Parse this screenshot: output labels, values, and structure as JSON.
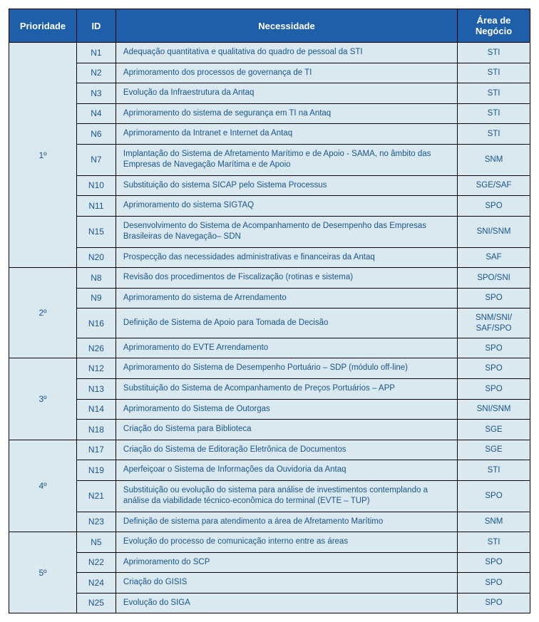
{
  "table": {
    "header_bg": "#1f5ea8",
    "header_fg": "#ffffff",
    "cell_bg": "#d9e9ef",
    "cell_fg": "#1a5490",
    "border_color": "#000000",
    "columns": {
      "priority": "Prioridade",
      "id": "ID",
      "need": "Necessidade",
      "area": "Área de Negócio"
    },
    "groups": [
      {
        "priority": "1º",
        "rows": [
          {
            "id": "N1",
            "need": "Adequação quantitativa e qualitativa do quadro de pessoal da STI",
            "area": "STI"
          },
          {
            "id": "N2",
            "need": "Aprimoramento dos processos de governança de TI",
            "area": "STI"
          },
          {
            "id": "N3",
            "need": "Evolução da Infraestrutura da Antaq",
            "area": "STI"
          },
          {
            "id": "N4",
            "need": "Aprimoramento do sistema de segurança em TI na Antaq",
            "area": "STI"
          },
          {
            "id": "N6",
            "need": "Aprimoramento da Intranet e Internet da Antaq",
            "area": "STI"
          },
          {
            "id": "N7",
            "need": "Implantação do Sistema de Afretamento Marítimo e de Apoio - SAMA, no âmbito das Empresas de Navegação Marítima e de Apoio",
            "area": "SNM"
          },
          {
            "id": "N10",
            "need": "Substituição do sistema SICAP pelo Sistema Processus",
            "area": "SGE/SAF"
          },
          {
            "id": "N11",
            "need": "Aprimoramento do sistema SIGTAQ",
            "area": "SPO"
          },
          {
            "id": "N15",
            "need": "Desenvolvimento do Sistema de Acompanhamento de Desempenho das Empresas Brasileiras de Navegação– SDN",
            "area": "SNI/SNM"
          },
          {
            "id": "N20",
            "need": "Prospecção das necessidades administrativas e financeiras da Antaq",
            "area": "SAF"
          }
        ]
      },
      {
        "priority": "2º",
        "rows": [
          {
            "id": "N8",
            "need": "Revisão dos procedimentos de Fiscalização (rotinas e sistema)",
            "area": "SPO/SNI"
          },
          {
            "id": "N9",
            "need": "Aprimoramento do sistema de Arrendamento",
            "area": "SPO"
          },
          {
            "id": "N16",
            "need": "Definição de Sistema de Apoio para Tomada de Decisão",
            "area": "SNM/SNI/ SAF/SPO"
          },
          {
            "id": "N26",
            "need": "Aprimoramento do EVTE Arrendamento",
            "area": "SPO"
          }
        ]
      },
      {
        "priority": "3º",
        "rows": [
          {
            "id": "N12",
            "need": "Aprimoramento do Sistema de Desempenho Portuário – SDP (módulo off-line)",
            "area": "SPO"
          },
          {
            "id": "N13",
            "need": "Substituição do Sistema de Acompanhamento de Preços Portuários – APP",
            "area": "SPO"
          },
          {
            "id": "N14",
            "need": "Aprimoramento do Sistema de Outorgas",
            "area": "SNI/SNM"
          },
          {
            "id": "N18",
            "need": "Criação do Sistema para Biblioteca",
            "area": "SGE"
          }
        ]
      },
      {
        "priority": "4º",
        "rows": [
          {
            "id": "N17",
            "need": "Criação do Sistema de Editoração Eletrônica de Documentos",
            "area": "SGE"
          },
          {
            "id": "N19",
            "need": "Aperfeiçoar o Sistema de Informações da Ouvidoria da Antaq",
            "area": "STI"
          },
          {
            "id": "N21",
            "need": "Substituição ou evolução do sistema para análise de investimentos contemplando a análise da viabilidade técnico-econômica do terminal (EVTE – TUP)",
            "area": "SPO"
          },
          {
            "id": "N23",
            "need": "Definição de sistema para atendimento a área de Afretamento Marítimo",
            "area": "SNM"
          }
        ]
      },
      {
        "priority": "5º",
        "rows": [
          {
            "id": "N5",
            "need": "Evolução do processo de comunicação interno entre as áreas",
            "area": "STI"
          },
          {
            "id": "N22",
            "need": "Aprimoramento do SCP",
            "area": "SPO"
          },
          {
            "id": "N24",
            "need": "Criação do GISIS",
            "area": "SPO"
          },
          {
            "id": "N25",
            "need": "Evolução do SIGA",
            "area": "SPO"
          }
        ]
      }
    ]
  }
}
